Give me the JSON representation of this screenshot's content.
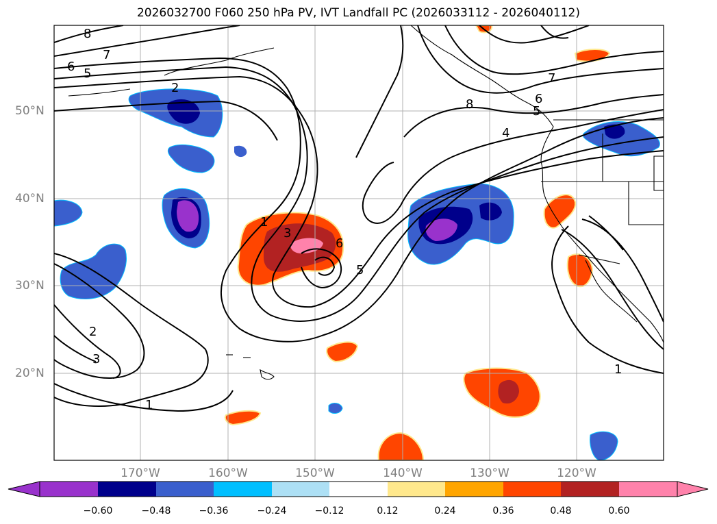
{
  "title": "2026032700 F060 250 hPa PV, IVT Landfall PC (2026033112 - 2026040112)",
  "lat_labels": [
    "50°N",
    "40°N",
    "30°N",
    "20°N"
  ],
  "lon_labels": [
    "170°W",
    "160°W",
    "150°W",
    "140°W",
    "130°W",
    "120°W"
  ],
  "contour_labels": [
    "8",
    "7",
    "6",
    "5",
    "2",
    "1",
    "3",
    "6",
    "5",
    "2",
    "3",
    "1",
    "8",
    "7",
    "6",
    "5",
    "4",
    "1"
  ],
  "colorbar": {
    "ticks": [
      "−0.60",
      "−0.48",
      "−0.36",
      "−0.24",
      "−0.12",
      "0.12",
      "0.24",
      "0.36",
      "0.48",
      "0.60"
    ],
    "colors": [
      "#9932CC",
      "#00008B",
      "#3A5FCD",
      "#00BFFF",
      "#ADE0F5",
      "#FFFFFF",
      "#FFE88C",
      "#FFA500",
      "#FF4500",
      "#B22222",
      "#FF82AB"
    ]
  }
}
